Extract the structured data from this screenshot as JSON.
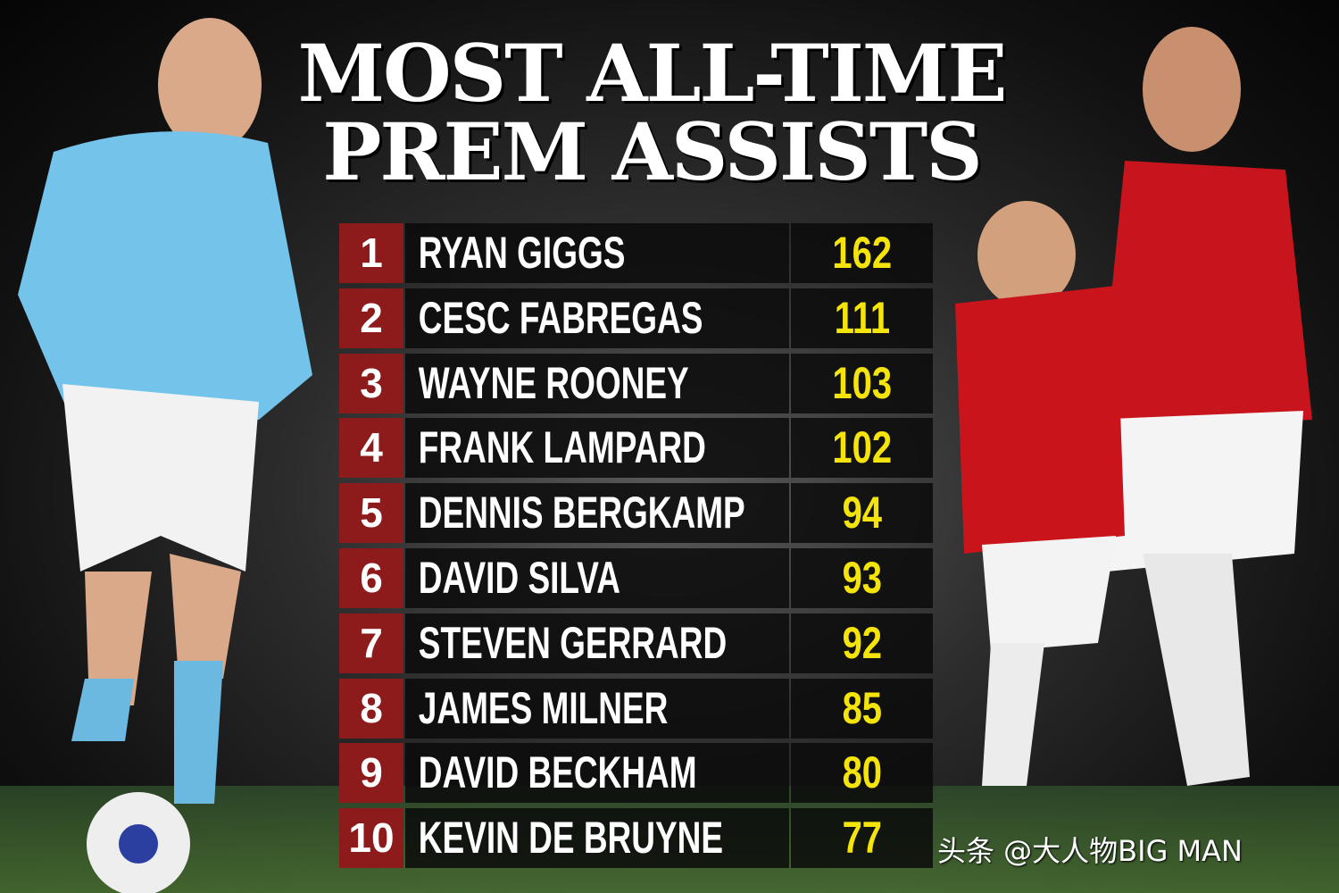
{
  "title": {
    "line1": "MOST ALL-TIME",
    "line2": "PREM ASSISTS"
  },
  "table": {
    "rows": [
      [
        "1",
        "RYAN GIGGS",
        "162"
      ],
      [
        "2",
        "CESC FABREGAS",
        "111"
      ],
      [
        "3",
        "WAYNE ROONEY",
        "103"
      ],
      [
        "4",
        "FRANK LAMPARD",
        "102"
      ],
      [
        "5",
        "DENNIS BERGKAMP",
        "94"
      ],
      [
        "6",
        "DAVID SILVA",
        "93"
      ],
      [
        "7",
        "STEVEN GERRARD",
        "92"
      ],
      [
        "8",
        "JAMES MILNER",
        "85"
      ],
      [
        "9",
        "DAVID BECKHAM",
        "80"
      ],
      [
        "10",
        "KEVIN DE BRUYNE",
        "77"
      ]
    ]
  },
  "watermark": "头条 @大人物BIG MAN"
}
